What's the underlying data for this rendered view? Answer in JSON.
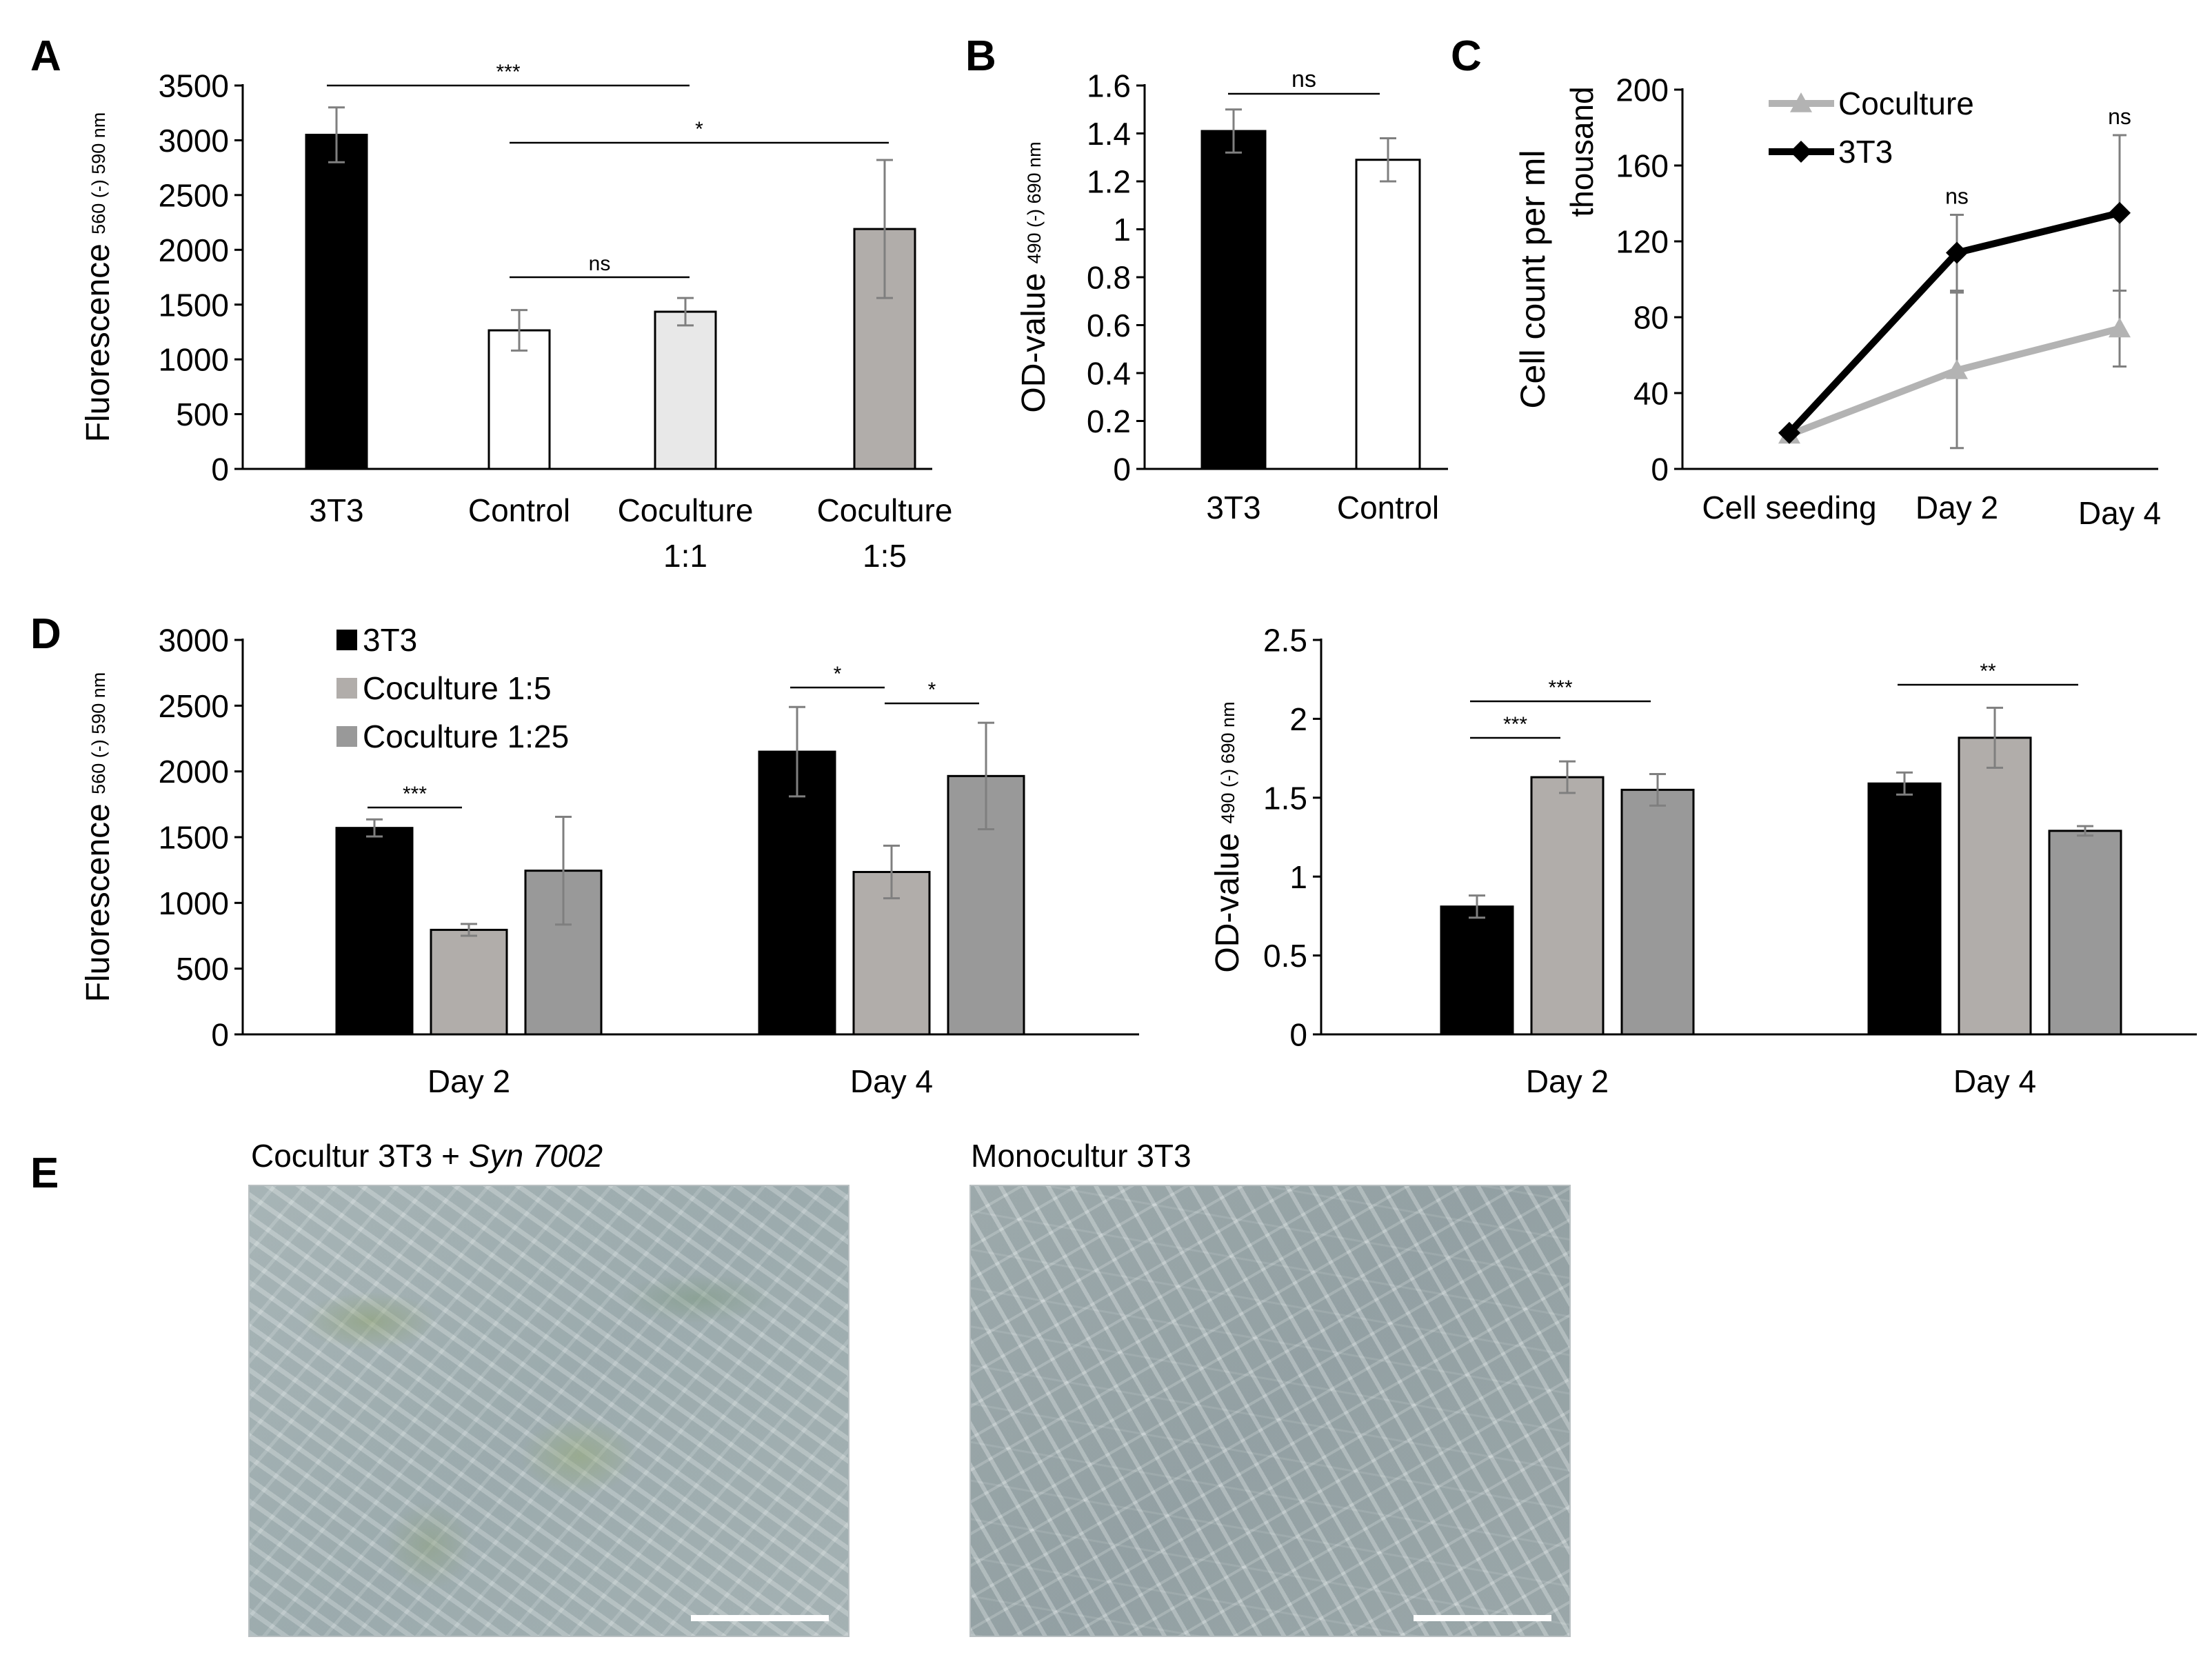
{
  "panels": [
    {
      "letter": "A",
      "x": 70,
      "y": 80
    },
    {
      "letter": "B",
      "x": 1426,
      "y": 80
    },
    {
      "letter": "C",
      "x": 2130,
      "y": 80
    },
    {
      "letter": "D",
      "x": 70,
      "y": 918
    },
    {
      "letter": "E",
      "x": 70,
      "y": 1700
    }
  ],
  "chart_data": [
    {
      "id": "A",
      "type": "bar",
      "ylabel": "Fluorescence",
      "ylabel_sub": "560 (-) 590 nm",
      "ylim": [
        0,
        3500
      ],
      "yticks": [
        0,
        500,
        1000,
        1500,
        2000,
        2500,
        3000,
        3500
      ],
      "categories": [
        [
          "3T3"
        ],
        [
          "Control"
        ],
        [
          "Coculture",
          "1:1"
        ],
        [
          "Coculture",
          "1:5"
        ]
      ],
      "values": [
        3050,
        1265,
        1435,
        2190
      ],
      "errors": [
        250,
        185,
        125,
        630
      ],
      "colors": [
        "#000000",
        "#ffffff",
        "#e8e8e8",
        "#b1adaa"
      ],
      "significance": [
        {
          "from": 0,
          "to": 2,
          "label": "***"
        },
        {
          "from": 1,
          "to": 3,
          "label": "*"
        },
        {
          "from": 1,
          "to": 2,
          "label": "ns"
        }
      ]
    },
    {
      "id": "B",
      "type": "bar",
      "ylabel": "OD-value",
      "ylabel_sub": "490 (-) 690 nm",
      "ylim": [
        0,
        1.6
      ],
      "yticks": [
        "0",
        "0.2",
        "0.4",
        "0.6",
        "0.8",
        "1",
        "1.2",
        "1.4",
        "1.6"
      ],
      "categories": [
        [
          "3T3"
        ],
        [
          "Control"
        ]
      ],
      "values": [
        1.41,
        1.29
      ],
      "errors": [
        0.09,
        0.09
      ],
      "colors": [
        "#000000",
        "#ffffff"
      ],
      "significance": [
        {
          "from": 0,
          "to": 1,
          "label": "ns"
        }
      ]
    },
    {
      "id": "C",
      "type": "line",
      "ylabel": "Cell count per ml",
      "ylabel_unit": "thousand",
      "ylim": [
        0,
        200
      ],
      "yticks": [
        0,
        40,
        80,
        120,
        160,
        200
      ],
      "categories": [
        "Cell seeding",
        "Day 2",
        "Day 4"
      ],
      "series": [
        {
          "name": "Coculture",
          "values": [
            18,
            52,
            74
          ],
          "errors": [
            0,
            41,
            20
          ],
          "color": "#b3b3b3",
          "marker": "triangle"
        },
        {
          "name": "3T3",
          "values": [
            19,
            114,
            135
          ],
          "errors": [
            0,
            20,
            41
          ],
          "color": "#000000",
          "marker": "diamond"
        }
      ],
      "annotations": [
        {
          "category": 1,
          "label": "ns"
        },
        {
          "category": 2,
          "label": "ns"
        }
      ],
      "legend": "top-left"
    },
    {
      "id": "D1",
      "type": "bar",
      "ylabel": "Fluorescence",
      "ylabel_sub": "560 (-) 590 nm",
      "ylim": [
        0,
        3000
      ],
      "yticks": [
        0,
        500,
        1000,
        1500,
        2000,
        2500,
        3000
      ],
      "categories": [
        "Day 2",
        "Day 4"
      ],
      "series": [
        {
          "name": "3T3",
          "values": [
            1570,
            2150
          ],
          "errors": [
            65,
            340
          ],
          "color": "#000000"
        },
        {
          "name": "Coculture 1:5",
          "values": [
            795,
            1235
          ],
          "errors": [
            45,
            200
          ],
          "color": "#b1adaa"
        },
        {
          "name": "Coculture 1:25",
          "values": [
            1245,
            1965
          ],
          "errors": [
            410,
            405
          ],
          "color": "#999999"
        }
      ],
      "significance": [
        {
          "group": 0,
          "from": 0,
          "to": 1,
          "label": "***"
        },
        {
          "group": 1,
          "from": 0,
          "to": 1,
          "label": "*"
        },
        {
          "group": 1,
          "from": 1,
          "to": 2,
          "label": "*"
        }
      ],
      "legend": "top-left"
    },
    {
      "id": "D2",
      "type": "bar",
      "ylabel": "OD-value",
      "ylabel_sub": "490 (-) 690 nm",
      "ylim": [
        0,
        2.5
      ],
      "yticks": [
        "0",
        "0.5",
        "1",
        "1.5",
        "2",
        "2.5"
      ],
      "categories": [
        "Day 2",
        "Day 4"
      ],
      "series": [
        {
          "name": "3T3",
          "values": [
            0.81,
            1.59
          ],
          "errors": [
            0.07,
            0.07
          ],
          "color": "#000000"
        },
        {
          "name": "Coculture 1:5",
          "values": [
            1.63,
            1.88
          ],
          "errors": [
            0.1,
            0.19
          ],
          "color": "#b1adaa"
        },
        {
          "name": "Coculture 1:25",
          "values": [
            1.55,
            1.29
          ],
          "errors": [
            0.1,
            0.03
          ],
          "color": "#999999"
        }
      ],
      "significance": [
        {
          "group": 0,
          "from": 0,
          "to": 1,
          "label": "***"
        },
        {
          "group": 0,
          "from": 0,
          "to": 2,
          "label": "***"
        },
        {
          "group": 1,
          "from": 0,
          "to": 2,
          "label": "**"
        }
      ]
    }
  ],
  "images": {
    "left_caption_plain": "Cocultur 3T3 + ",
    "left_caption_italic": "Syn 7002",
    "right_caption": "Monocultur 3T3"
  }
}
